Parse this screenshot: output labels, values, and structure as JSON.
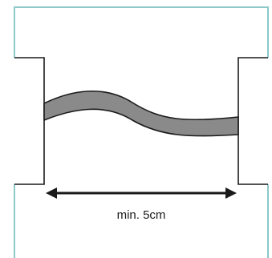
{
  "diagram": {
    "dimension_label": "min. 5cm",
    "colors": {
      "frame": "#8cc9c8",
      "outline": "#1a1a1a",
      "cable_fill": "#8a8a8a",
      "background": "#ffffff"
    }
  }
}
